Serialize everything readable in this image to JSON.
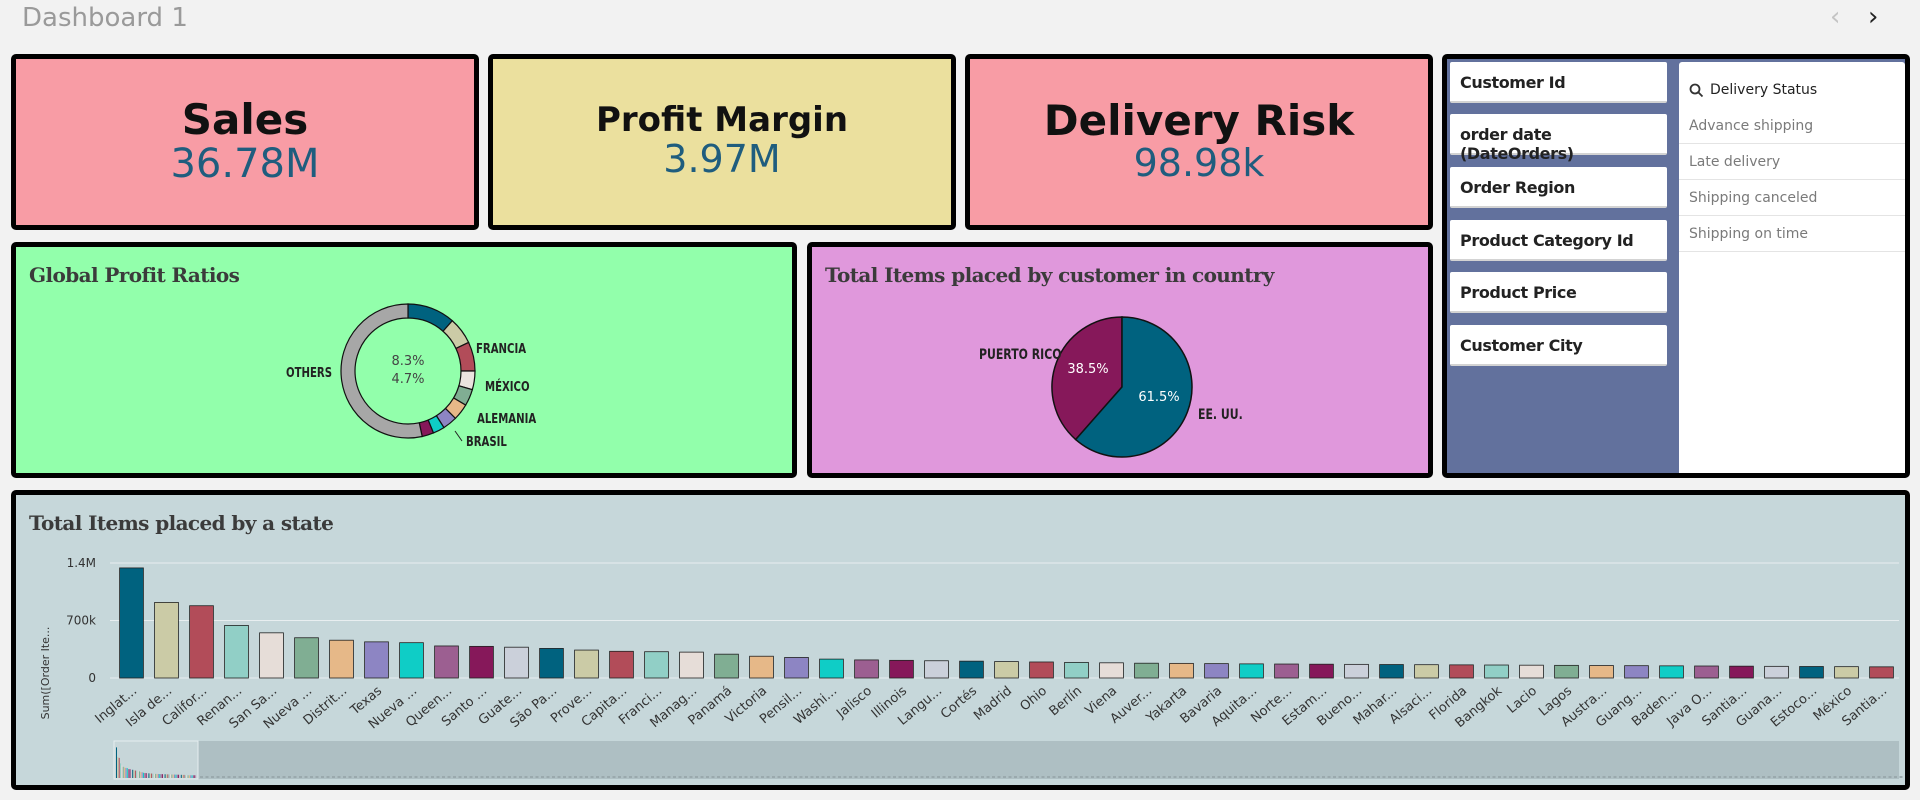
{
  "dashboard": {
    "title": "Dashboard 1",
    "prev_icon": "chevron-left-icon",
    "next_icon": "chevron-right-icon"
  },
  "kpis": {
    "sales": {
      "label": "Sales",
      "value": "36.78M",
      "bg": "#f89ca5"
    },
    "profit_margin": {
      "label": "Profit Margin",
      "value": "3.97M",
      "bg": "#ebe09e"
    },
    "delivery_risk": {
      "label": "Delivery Risk",
      "value": "98.98k",
      "bg": "#f89ca5"
    }
  },
  "profit_chart": {
    "title": "Global Profit Ratios",
    "bg": "#92ffab",
    "center_values": [
      "8.3%",
      "4.7%"
    ],
    "labels": [
      "OTHERS",
      "FRANCIA",
      "MÉXICO",
      "ALEMANIA",
      "BRASIL"
    ]
  },
  "country_chart": {
    "title": "Total Items placed by customer in country",
    "bg": "#e098dc",
    "chart_data": {
      "type": "pie",
      "labels": [
        "PUERTO RICO",
        "EE. UU."
      ],
      "values": [
        38.5,
        61.5
      ],
      "value_labels": [
        "38.5%",
        "61.5%"
      ],
      "colors": [
        "#86185a",
        "#00627f"
      ]
    }
  },
  "filters": {
    "items": [
      {
        "label": "Customer Id"
      },
      {
        "label": "order date (DateOrders)"
      },
      {
        "label": "Order Region"
      },
      {
        "label": "Product Category Id"
      },
      {
        "label": "Product Price"
      },
      {
        "label": "Customer City"
      }
    ],
    "listbox": {
      "title": "Delivery Status",
      "search_icon": "search-icon",
      "options": [
        "Advance shipping",
        "Late delivery",
        "Shipping canceled",
        "Shipping on time"
      ]
    }
  },
  "state_chart": {
    "title": "Total Items placed by a state",
    "bg": "#c6d7da",
    "y_axis_label": "Sum([Order Ite...",
    "chart_data": {
      "type": "bar",
      "y_ticks": [
        "1.4M",
        "700k",
        "0"
      ],
      "ylim": [
        0,
        1400000
      ],
      "categories": [
        "Inglat...",
        "Isla de...",
        "Califor...",
        "Renan...",
        "San Sa...",
        "Nueva ...",
        "Distrit...",
        "Texas",
        "Nueva ...",
        "Queen...",
        "Santo ...",
        "Guate...",
        "São Pa...",
        "Prove...",
        "Capita...",
        "Franci...",
        "Manag...",
        "Panamá",
        "Victoria",
        "Pensil...",
        "Washi...",
        "Jalisco",
        "Illinois",
        "Langu...",
        "Cortés",
        "Madrid",
        "Ohio",
        "Berlín",
        "Viena",
        "Auver...",
        "Yakarta",
        "Bavaria",
        "Aquita...",
        "Norte...",
        "Estam...",
        "Bueno...",
        "Mahar...",
        "Alsaci...",
        "Florida",
        "Bangkok",
        "Lacio",
        "Lagos",
        "Austra...",
        "Guang...",
        "Baden...",
        "Java O...",
        "Santia...",
        "Guana...",
        "Estoco...",
        "México",
        "Santia..."
      ],
      "values": [
        1340000,
        920000,
        880000,
        640000,
        550000,
        490000,
        460000,
        440000,
        430000,
        390000,
        385000,
        375000,
        360000,
        340000,
        325000,
        320000,
        315000,
        290000,
        265000,
        250000,
        230000,
        220000,
        215000,
        210000,
        205000,
        200000,
        195000,
        190000,
        185000,
        180000,
        178000,
        175000,
        172000,
        170000,
        168000,
        166000,
        164000,
        162000,
        160000,
        158000,
        156000,
        154000,
        152000,
        150000,
        148000,
        146000,
        144000,
        142000,
        140000,
        138000,
        136000
      ],
      "colors": [
        "#00627f",
        "#cbcba6",
        "#b24c59",
        "#91cfc6",
        "#e6ddd8",
        "#80ae93",
        "#e6b888",
        "#8d85c3",
        "#0fcdc6",
        "#9c5f91",
        "#86185a",
        "#cbd0da"
      ]
    }
  }
}
